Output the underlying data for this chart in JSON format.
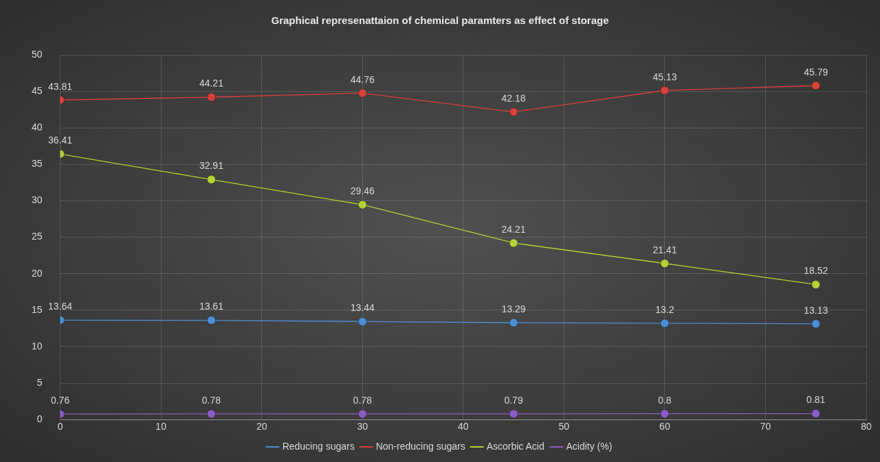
{
  "chart_data": {
    "type": "line",
    "title": "Graphical represenattaion of chemical paramters as effect of storage",
    "x": [
      0,
      15,
      30,
      45,
      60,
      75
    ],
    "series": [
      {
        "name": "Reducing sugars",
        "color": "#4a8fd8",
        "values": [
          13.64,
          13.61,
          13.44,
          13.29,
          13.2,
          13.13
        ]
      },
      {
        "name": "Non-reducing sugars",
        "color": "#d8403a",
        "values": [
          43.81,
          44.21,
          44.76,
          42.18,
          45.13,
          45.79
        ]
      },
      {
        "name": "Ascorbic Acid",
        "color": "#b4d236",
        "values": [
          36.41,
          32.91,
          29.46,
          24.21,
          21.41,
          18.52
        ]
      },
      {
        "name": "Acidity (%)",
        "color": "#8a5cc6",
        "values": [
          0.76,
          0.78,
          0.78,
          0.79,
          0.8,
          0.81
        ]
      }
    ],
    "xlim": [
      0,
      80
    ],
    "xticks": [
      0,
      10,
      20,
      30,
      40,
      50,
      60,
      70,
      80
    ],
    "ylim": [
      0,
      50
    ],
    "yticks": [
      0,
      5,
      10,
      15,
      20,
      25,
      30,
      35,
      40,
      45,
      50
    ],
    "grid": true,
    "legend": "bottom",
    "marker": "circle",
    "line_style": "solid",
    "data_labels": true
  }
}
